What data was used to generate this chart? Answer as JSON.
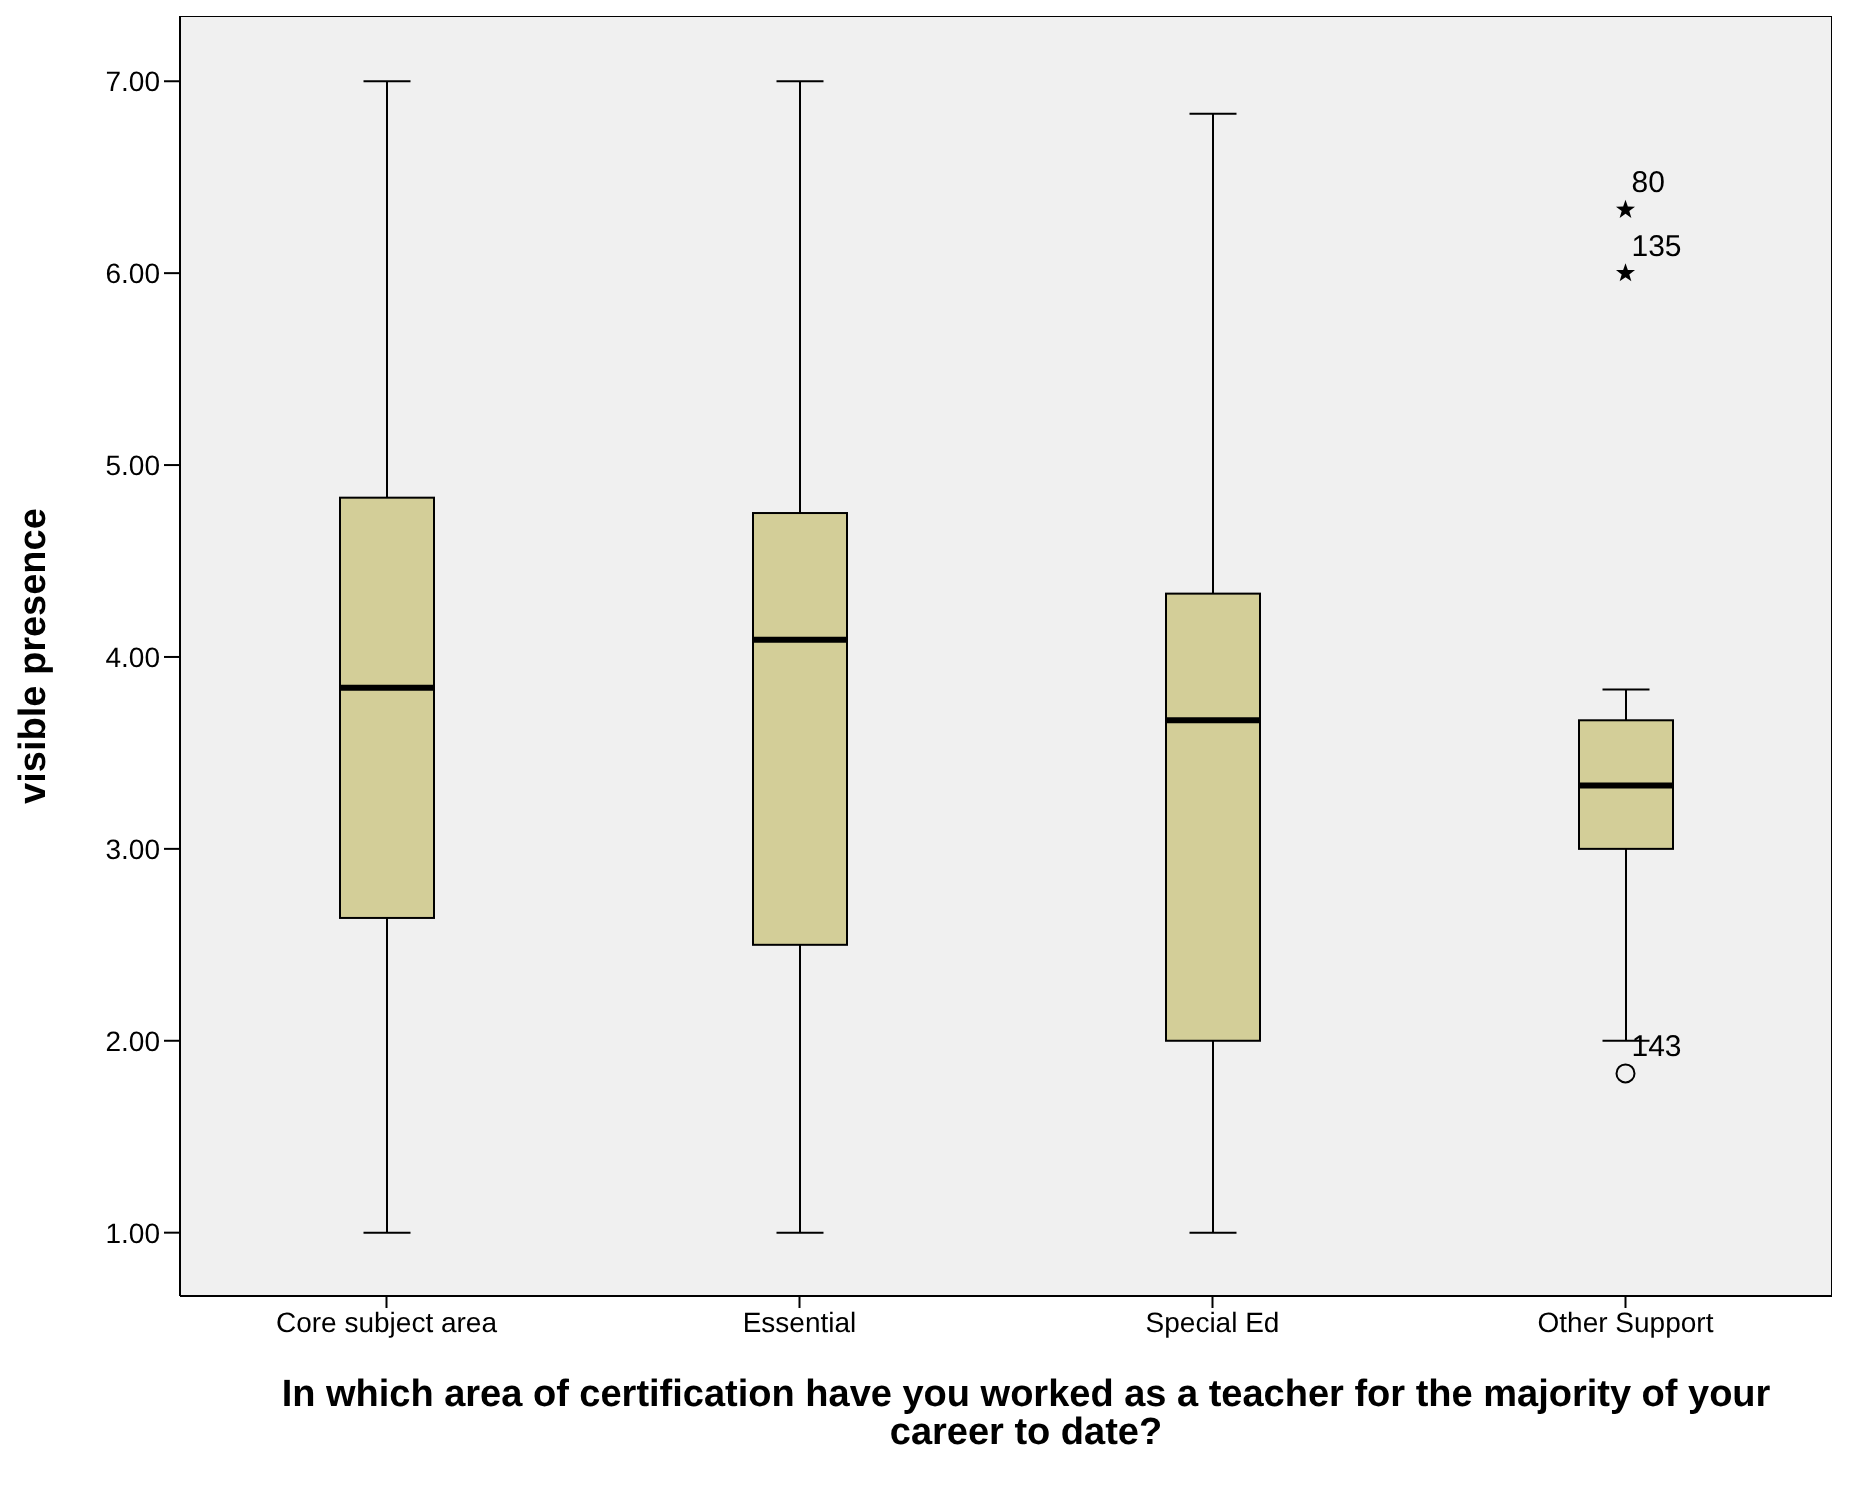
{
  "chart_data": {
    "type": "box",
    "xlabel": "In which area of certification have you worked as a teacher for the majority of your career to date?",
    "ylabel": "visible presence",
    "categories": [
      "Core subject area",
      "Essential",
      "Special Ed",
      "Other Support"
    ],
    "color": "#d3ce98",
    "boxes": [
      {
        "low": 1,
        "q1": 2.64,
        "median": 3.84,
        "q3": 4.83,
        "high": 7
      },
      {
        "low": 1,
        "q1": 2.5,
        "median": 4.09,
        "q3": 4.75,
        "high": 7
      },
      {
        "low": 1,
        "q1": 2,
        "median": 3.67,
        "q3": 4.33,
        "high": 6.83
      },
      {
        "low": 2,
        "q1": 3,
        "median": 3.33,
        "q3": 3.67,
        "high": 3.83,
        "outliers": [
          6.33,
          6,
          1.83
        ]
      }
    ],
    "ylim": [
      0.67,
      7.34
    ],
    "yticks": [
      {
        "value": 1,
        "label": "1.00"
      },
      {
        "value": 2,
        "label": "2.00"
      },
      {
        "value": 3,
        "label": "3.00"
      },
      {
        "value": 4,
        "label": "4.00"
      },
      {
        "value": 5,
        "label": "5.00"
      },
      {
        "value": 6,
        "label": "6.00"
      },
      {
        "value": 7,
        "label": "7.00"
      }
    ],
    "grid": false,
    "legend": false,
    "annotations": [
      "80",
      "135",
      "143"
    ]
  }
}
